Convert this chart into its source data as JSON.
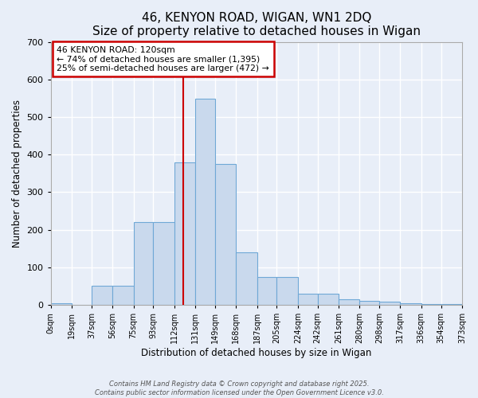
{
  "title": "46, KENYON ROAD, WIGAN, WN1 2DQ",
  "subtitle": "Size of property relative to detached houses in Wigan",
  "xlabel": "Distribution of detached houses by size in Wigan",
  "ylabel": "Number of detached properties",
  "bin_edges": [
    0,
    19,
    37,
    56,
    75,
    93,
    112,
    131,
    149,
    168,
    187,
    205,
    224,
    242,
    261,
    280,
    298,
    317,
    336,
    354,
    373
  ],
  "bar_heights": [
    5,
    0,
    50,
    50,
    220,
    220,
    380,
    550,
    375,
    140,
    75,
    75,
    30,
    30,
    15,
    10,
    8,
    5,
    3,
    3
  ],
  "bar_color": "#c9d9ed",
  "bar_edge_color": "#6fa8d6",
  "property_size": 120,
  "vline_color": "#cc0000",
  "annotation_text": "46 KENYON ROAD: 120sqm\n← 74% of detached houses are smaller (1,395)\n25% of semi-detached houses are larger (472) →",
  "annotation_box_color": "#ffffff",
  "annotation_box_edge_color": "#cc0000",
  "ylim": [
    0,
    700
  ],
  "yticks": [
    0,
    100,
    200,
    300,
    400,
    500,
    600,
    700
  ],
  "bg_color": "#e8eef8",
  "grid_color": "#ffffff",
  "footer_line1": "Contains HM Land Registry data © Crown copyright and database right 2025.",
  "footer_line2": "Contains public sector information licensed under the Open Government Licence v3.0.",
  "tick_labels": [
    "0sqm",
    "19sqm",
    "37sqm",
    "56sqm",
    "75sqm",
    "93sqm",
    "112sqm",
    "131sqm",
    "149sqm",
    "168sqm",
    "187sqm",
    "205sqm",
    "224sqm",
    "242sqm",
    "261sqm",
    "280sqm",
    "298sqm",
    "317sqm",
    "336sqm",
    "354sqm",
    "373sqm"
  ],
  "title_fontsize": 11,
  "subtitle_fontsize": 9
}
